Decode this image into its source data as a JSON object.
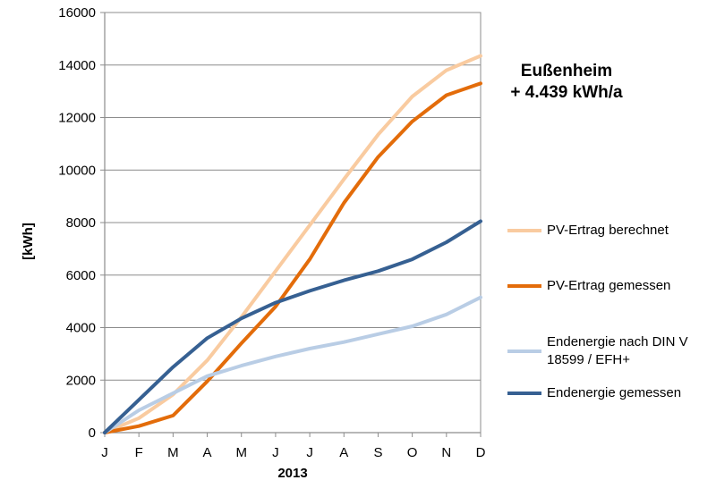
{
  "annotation": {
    "line1": "Eußenheim",
    "line2": "+ 4.439 kWh/a"
  },
  "chart_data": {
    "type": "line",
    "x": [
      "J",
      "F",
      "M",
      "A",
      "M",
      "J",
      "J",
      "A",
      "S",
      "O",
      "N",
      "D"
    ],
    "xlabel": "2013",
    "ylabel": "[kWh]",
    "ylim": [
      0,
      16000
    ],
    "yticks": [
      0,
      2000,
      4000,
      6000,
      8000,
      10000,
      12000,
      14000,
      16000
    ],
    "grid": true,
    "legend": "right",
    "series": [
      {
        "name": "PV-Ertrag berechnet",
        "color": "#F9CBA0",
        "values": [
          0,
          550,
          1450,
          2750,
          4400,
          6150,
          7900,
          9650,
          11350,
          12800,
          13800,
          14350
        ]
      },
      {
        "name": "PV-Ertrag gemessen",
        "color": "#E36C0A",
        "values": [
          0,
          250,
          650,
          1950,
          3400,
          4800,
          6600,
          8750,
          10500,
          11850,
          12850,
          13300
        ]
      },
      {
        "name": "Endenergie nach DIN V 18599 / EFH+",
        "color": "#B9CDE5",
        "values": [
          0,
          850,
          1500,
          2150,
          2550,
          2900,
          3200,
          3450,
          3750,
          4050,
          4500,
          5150
        ]
      },
      {
        "name": "Endenergie gemessen",
        "color": "#366092",
        "values": [
          0,
          1250,
          2500,
          3600,
          4350,
          4950,
          5400,
          5800,
          6150,
          6600,
          7250,
          8050
        ]
      }
    ]
  }
}
